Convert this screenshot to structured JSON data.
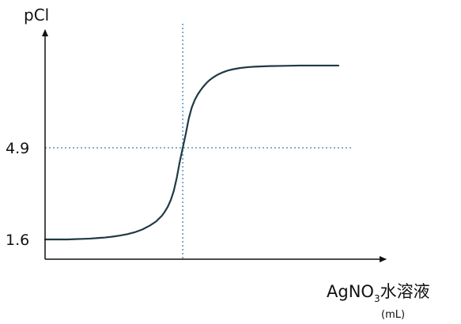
{
  "chart_data": {
    "type": "line",
    "title": "",
    "ylabel": "pCl",
    "xlabel": {
      "prefix": "AgNO",
      "subscript": "3",
      "suffix": "水溶液",
      "unit": "(mL)"
    },
    "y_ticks": [
      {
        "value": 1.6,
        "label": "1.6"
      },
      {
        "value": 4.9,
        "label": "4.9"
      }
    ],
    "ylim": [
      0.9,
      8.3
    ],
    "x_axis_numeric": false,
    "equivalence": {
      "y": 4.9
    },
    "grid": false,
    "legend": "none",
    "series": [
      {
        "values_description_free": true,
        "x": [
          0.0,
          0.05,
          0.1,
          0.15,
          0.2,
          0.25,
          0.3,
          0.35,
          0.4,
          0.45,
          0.5,
          0.55,
          0.6,
          0.65,
          0.7,
          0.74,
          0.78,
          0.8,
          0.82,
          0.84,
          0.86,
          0.88,
          0.9,
          0.92,
          0.94,
          0.96,
          0.98,
          1.0,
          1.02,
          1.04,
          1.06,
          1.08,
          1.1,
          1.12,
          1.14,
          1.16,
          1.18,
          1.2,
          1.22,
          1.25,
          1.3,
          1.35,
          1.4,
          1.5,
          1.6,
          1.7,
          1.8,
          1.9,
          1.96
        ],
        "y": [
          1.6,
          1.6,
          1.6,
          1.6,
          1.61,
          1.62,
          1.63,
          1.65,
          1.67,
          1.7,
          1.74,
          1.79,
          1.86,
          1.96,
          2.1,
          2.24,
          2.45,
          2.6,
          2.78,
          3.02,
          3.35,
          3.82,
          4.4,
          4.9,
          5.4,
          5.95,
          6.35,
          6.62,
          6.82,
          6.98,
          7.12,
          7.24,
          7.34,
          7.42,
          7.49,
          7.55,
          7.6,
          7.64,
          7.68,
          7.72,
          7.77,
          7.8,
          7.82,
          7.84,
          7.85,
          7.86,
          7.86,
          7.86,
          7.86
        ]
      }
    ],
    "colors": {
      "curve": "#1f3a44",
      "axes": "#111111",
      "guides": "#3f7fb5"
    }
  }
}
